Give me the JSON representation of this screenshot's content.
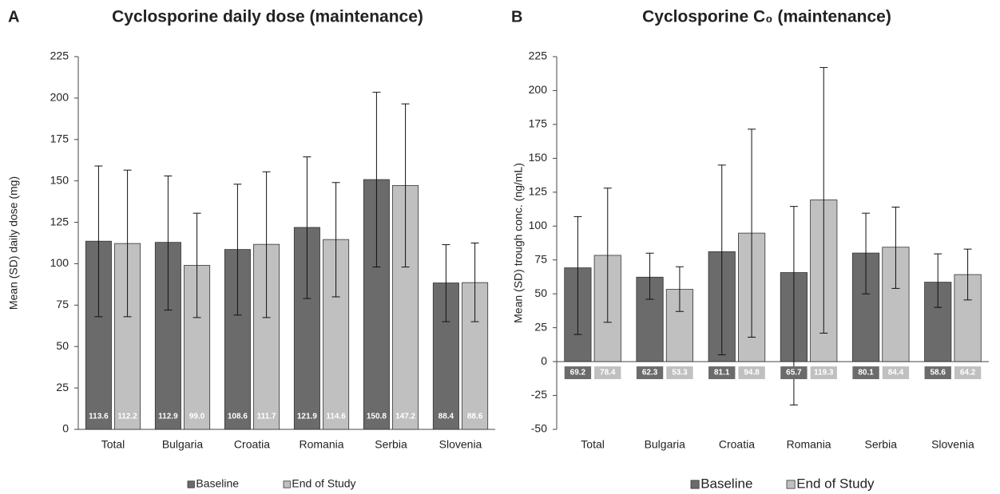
{
  "chart_data": [
    {
      "type": "bar",
      "panel": "A",
      "title": "Cyclosporine daily dose (maintenance)",
      "y_label": "Mean (SD) daily dose (mg)",
      "categories": [
        "Total",
        "Bulgaria",
        "Croatia",
        "Romania",
        "Serbia",
        "Slovenia"
      ],
      "ylim": [
        0,
        225
      ],
      "yticks": [
        0,
        25,
        50,
        75,
        100,
        125,
        150,
        175,
        200,
        225
      ],
      "legend": "bottom",
      "series": [
        {
          "name": "Baseline",
          "color": "#6b6b6b",
          "values": [
            113.6,
            112.9,
            108.6,
            121.9,
            150.8,
            88.4
          ],
          "value_labels": [
            "113.6",
            "112.9",
            "108.6",
            "121.9",
            "150.8",
            "88.4"
          ],
          "error_plus": [
            45.4,
            40.1,
            39.4,
            42.6,
            52.7,
            23.1
          ],
          "error_minus": [
            45.6,
            40.9,
            39.6,
            42.9,
            52.8,
            23.4
          ]
        },
        {
          "name": "End of Study",
          "color": "#c0c0c0",
          "values": [
            112.2,
            99.0,
            111.7,
            114.6,
            147.2,
            88.6
          ],
          "value_labels": [
            "112.2",
            "99.0",
            "111.7",
            "114.6",
            "147.2",
            "88.6"
          ],
          "error_plus": [
            44.3,
            31.5,
            43.8,
            34.4,
            49.3,
            23.9
          ],
          "error_minus": [
            44.2,
            31.5,
            44.2,
            34.6,
            49.2,
            23.6
          ]
        }
      ]
    },
    {
      "type": "bar",
      "panel": "B",
      "title": "Cyclosporine C₀ (maintenance)",
      "y_label": "Mean (SD) trough conc. (ng/mL)",
      "categories": [
        "Total",
        "Bulgaria",
        "Croatia",
        "Romania",
        "Serbia",
        "Slovenia"
      ],
      "ylim": [
        -50,
        225
      ],
      "yticks": [
        -50,
        -25,
        0,
        25,
        50,
        75,
        100,
        125,
        150,
        175,
        200,
        225
      ],
      "legend": "bottom",
      "series": [
        {
          "name": "Baseline",
          "color": "#6b6b6b",
          "values": [
            69.2,
            62.3,
            81.1,
            65.7,
            80.1,
            58.6
          ],
          "value_labels": [
            "69.2",
            "62.3",
            "81.1",
            "65.7",
            "80.1",
            "58.6"
          ],
          "error_plus": [
            37.8,
            17.7,
            63.9,
            48.8,
            29.4,
            20.9
          ],
          "error_minus": [
            49.2,
            16.3,
            76.1,
            97.7,
            30.1,
            18.6
          ]
        },
        {
          "name": "End of Study",
          "color": "#c0c0c0",
          "values": [
            78.4,
            53.3,
            94.8,
            119.3,
            84.4,
            64.2
          ],
          "value_labels": [
            "78.4",
            "53.3",
            "94.8",
            "119.3",
            "84.4",
            "64.2"
          ],
          "error_plus": [
            49.6,
            16.7,
            76.7,
            97.7,
            29.6,
            18.8
          ],
          "error_minus": [
            49.4,
            16.3,
            76.8,
            98.3,
            30.4,
            18.7
          ]
        }
      ]
    }
  ]
}
